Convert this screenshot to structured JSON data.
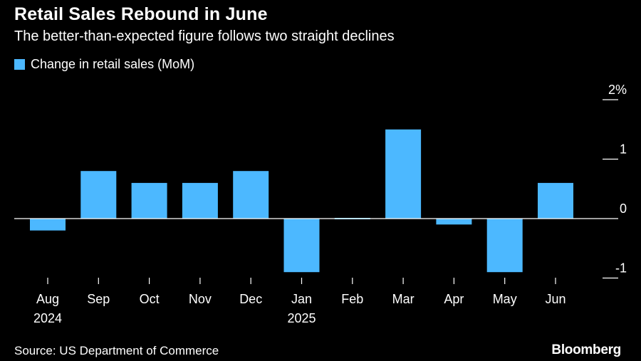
{
  "header": {
    "title": "Retail Sales Rebound in June",
    "subtitle": "The better-than-expected figure follows two straight declines"
  },
  "footer": {
    "source": "Source: US Department of Commerce",
    "brand": "Bloomberg"
  },
  "colors": {
    "background": "#000000",
    "bar": "#4cb8ff",
    "text": "#ffffff",
    "axis": "#ffffff"
  },
  "chart_data": {
    "type": "bar",
    "title": "Retail Sales Rebound in June",
    "subtitle": "The better-than-expected figure follows two straight declines",
    "categories": [
      "Aug",
      "Sep",
      "Oct",
      "Nov",
      "Dec",
      "Jan",
      "Feb",
      "Mar",
      "Apr",
      "May",
      "Jun"
    ],
    "category_sublabels": [
      "2024",
      "",
      "",
      "",
      "",
      "2025",
      "",
      "",
      "",
      "",
      ""
    ],
    "series": [
      {
        "name": "Change in retail sales (MoM)",
        "values": [
          -0.2,
          0.8,
          0.6,
          0.6,
          0.8,
          -0.9,
          -0.02,
          1.5,
          -0.1,
          -0.9,
          0.6
        ]
      }
    ],
    "yaxis": {
      "ticks": [
        -1,
        0,
        1,
        2
      ],
      "tick_labels": [
        "-1",
        "0",
        "1",
        "2%"
      ],
      "position": "right"
    },
    "ylim": [
      -1.1,
      2.1
    ],
    "legend": "top-left",
    "grid": false
  }
}
